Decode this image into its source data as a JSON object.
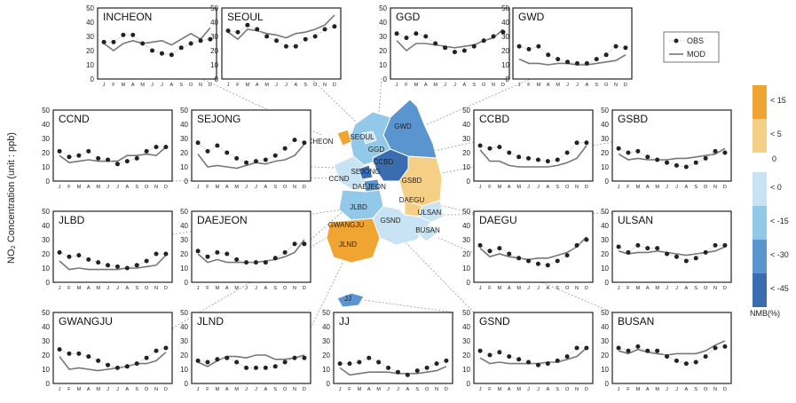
{
  "figure": {
    "ylabel": "NO₂ Concentration (unit : ppb)",
    "months": [
      "J",
      "F",
      "M",
      "A",
      "M",
      "J",
      "J",
      "A",
      "S",
      "O",
      "N",
      "D"
    ],
    "yticks": [
      0,
      10,
      20,
      30,
      40,
      50
    ],
    "legend": {
      "obs": "OBS",
      "mod": "MOD"
    },
    "colorbar": {
      "title": "NMB(%)",
      "zero_label": "0",
      "bins": [
        {
          "label": "< 15",
          "color": "#f0a431"
        },
        {
          "label": "< 5",
          "color": "#f6cf86"
        },
        {
          "label": "< 0",
          "color": "#c7e3f4"
        },
        {
          "label": "< -15",
          "color": "#92c8e8"
        },
        {
          "label": "< -30",
          "color": "#5b95cf"
        },
        {
          "label": "< -45",
          "color": "#3a6db0"
        }
      ]
    },
    "colors": {
      "obs": "#222222",
      "mod": "#777777"
    }
  },
  "chart_data": [
    {
      "type": "line",
      "title": "INCHEON",
      "ylim": [
        0,
        50
      ],
      "series": [
        {
          "name": "OBS",
          "values": [
            26,
            26,
            31,
            31,
            25,
            20,
            18,
            17,
            22,
            25,
            27,
            28
          ]
        },
        {
          "name": "MOD",
          "values": [
            25,
            20,
            25,
            27,
            25,
            26,
            27,
            24,
            28,
            32,
            28,
            36
          ]
        }
      ]
    },
    {
      "type": "line",
      "title": "SEOUL",
      "ylim": [
        0,
        50
      ],
      "series": [
        {
          "name": "OBS",
          "values": [
            34,
            33,
            38,
            35,
            30,
            27,
            23,
            23,
            28,
            30,
            35,
            37
          ]
        },
        {
          "name": "MOD",
          "values": [
            33,
            28,
            35,
            34,
            32,
            31,
            29,
            32,
            33,
            35,
            38,
            45
          ]
        }
      ]
    },
    {
      "type": "line",
      "title": "GGD",
      "ylim": [
        0,
        50
      ],
      "series": [
        {
          "name": "OBS",
          "values": [
            32,
            29,
            32,
            30,
            25,
            22,
            19,
            20,
            23,
            27,
            30,
            33
          ]
        },
        {
          "name": "MOD",
          "values": [
            27,
            20,
            25,
            25,
            24,
            23,
            22,
            23,
            24,
            27,
            29,
            35
          ]
        }
      ]
    },
    {
      "type": "line",
      "title": "GWD",
      "ylim": [
        0,
        50
      ],
      "series": [
        {
          "name": "OBS",
          "values": [
            23,
            21,
            23,
            17,
            14,
            12,
            11,
            11,
            14,
            17,
            23,
            22
          ]
        },
        {
          "name": "MOD",
          "values": [
            14,
            11,
            11,
            10,
            11,
            11,
            10,
            10,
            11,
            12,
            13,
            17
          ]
        }
      ]
    },
    {
      "type": "line",
      "title": "CCND",
      "ylim": [
        0,
        50
      ],
      "series": [
        {
          "name": "OBS",
          "values": [
            21,
            17,
            18,
            21,
            16,
            15,
            12,
            14,
            16,
            21,
            24,
            24
          ]
        },
        {
          "name": "MOD",
          "values": [
            18,
            13,
            14,
            15,
            14,
            14,
            14,
            18,
            18,
            19,
            18,
            24
          ]
        }
      ]
    },
    {
      "type": "line",
      "title": "SEJONG",
      "ylim": [
        0,
        50
      ],
      "series": [
        {
          "name": "OBS",
          "values": [
            27,
            21,
            25,
            20,
            16,
            13,
            14,
            15,
            18,
            23,
            29,
            27
          ]
        },
        {
          "name": "MOD",
          "values": [
            19,
            10,
            11,
            10,
            9,
            11,
            13,
            12,
            14,
            15,
            18,
            26
          ]
        }
      ]
    },
    {
      "type": "line",
      "title": "CCBD",
      "ylim": [
        0,
        50
      ],
      "series": [
        {
          "name": "OBS",
          "values": [
            25,
            23,
            24,
            20,
            17,
            16,
            15,
            14,
            15,
            20,
            27,
            27
          ]
        },
        {
          "name": "MOD",
          "values": [
            22,
            14,
            14,
            11,
            10,
            10,
            10,
            10,
            11,
            13,
            16,
            25
          ]
        }
      ]
    },
    {
      "type": "line",
      "title": "GSBD",
      "ylim": [
        0,
        50
      ],
      "series": [
        {
          "name": "OBS",
          "values": [
            23,
            20,
            21,
            17,
            15,
            13,
            11,
            10,
            13,
            16,
            21,
            20
          ]
        },
        {
          "name": "MOD",
          "values": [
            19,
            15,
            16,
            15,
            15,
            15,
            16,
            16,
            17,
            18,
            19,
            23
          ]
        }
      ]
    },
    {
      "type": "line",
      "title": "JLBD",
      "ylim": [
        0,
        50
      ],
      "series": [
        {
          "name": "OBS",
          "values": [
            21,
            18,
            19,
            16,
            14,
            12,
            11,
            10,
            12,
            15,
            20,
            20
          ]
        },
        {
          "name": "MOD",
          "values": [
            15,
            9,
            10,
            9,
            9,
            9,
            9,
            10,
            10,
            11,
            12,
            19
          ]
        }
      ]
    },
    {
      "type": "line",
      "title": "DAEJEON",
      "ylim": [
        0,
        50
      ],
      "series": [
        {
          "name": "OBS",
          "values": [
            22,
            18,
            21,
            20,
            16,
            14,
            14,
            14,
            17,
            21,
            27,
            27
          ]
        },
        {
          "name": "MOD",
          "values": [
            20,
            14,
            16,
            14,
            14,
            14,
            14,
            15,
            16,
            18,
            21,
            30
          ]
        }
      ]
    },
    {
      "type": "line",
      "title": "DAEGU",
      "ylim": [
        0,
        50
      ],
      "series": [
        {
          "name": "OBS",
          "values": [
            26,
            22,
            24,
            20,
            17,
            15,
            13,
            12,
            15,
            19,
            26,
            30
          ]
        },
        {
          "name": "MOD",
          "values": [
            24,
            18,
            20,
            18,
            17,
            16,
            17,
            17,
            19,
            21,
            25,
            32
          ]
        }
      ]
    },
    {
      "type": "line",
      "title": "ULSAN",
      "ylim": [
        0,
        50
      ],
      "series": [
        {
          "name": "OBS",
          "values": [
            25,
            21,
            26,
            24,
            24,
            20,
            18,
            15,
            17,
            21,
            26,
            26
          ]
        },
        {
          "name": "MOD",
          "values": [
            22,
            20,
            21,
            21,
            22,
            21,
            20,
            19,
            20,
            21,
            22,
            25
          ]
        }
      ]
    },
    {
      "type": "line",
      "title": "GWANGJU",
      "ylim": [
        0,
        50
      ],
      "series": [
        {
          "name": "OBS",
          "values": [
            24,
            21,
            21,
            19,
            16,
            13,
            11,
            12,
            14,
            18,
            23,
            25
          ]
        },
        {
          "name": "MOD",
          "values": [
            19,
            10,
            11,
            10,
            9,
            10,
            11,
            12,
            14,
            14,
            16,
            22
          ]
        }
      ]
    },
    {
      "type": "line",
      "title": "JLND",
      "ylim": [
        0,
        50
      ],
      "series": [
        {
          "name": "OBS",
          "values": [
            16,
            15,
            17,
            18,
            15,
            11,
            11,
            11,
            12,
            15,
            18,
            18
          ]
        },
        {
          "name": "MOD",
          "values": [
            15,
            12,
            16,
            19,
            19,
            18,
            20,
            20,
            17,
            17,
            18,
            20
          ]
        }
      ]
    },
    {
      "type": "line",
      "title": "JJ",
      "ylim": [
        0,
        50
      ],
      "series": [
        {
          "name": "OBS",
          "values": [
            14,
            14,
            15,
            18,
            15,
            11,
            8,
            6,
            9,
            11,
            14,
            16
          ]
        },
        {
          "name": "MOD",
          "values": [
            11,
            6,
            7,
            8,
            8,
            8,
            7,
            7,
            7,
            8,
            9,
            12
          ]
        }
      ]
    },
    {
      "type": "line",
      "title": "GSND",
      "ylim": [
        0,
        50
      ],
      "series": [
        {
          "name": "OBS",
          "values": [
            23,
            20,
            22,
            19,
            17,
            15,
            13,
            14,
            16,
            19,
            25,
            25
          ]
        },
        {
          "name": "MOD",
          "values": [
            18,
            14,
            15,
            14,
            14,
            14,
            14,
            15,
            15,
            17,
            19,
            25
          ]
        }
      ]
    },
    {
      "type": "line",
      "title": "BUSAN",
      "ylim": [
        0,
        50
      ],
      "series": [
        {
          "name": "OBS",
          "values": [
            25,
            23,
            26,
            23,
            23,
            19,
            16,
            14,
            15,
            19,
            25,
            26
          ]
        },
        {
          "name": "MOD",
          "values": [
            23,
            21,
            24,
            22,
            21,
            20,
            21,
            21,
            21,
            23,
            27,
            30
          ]
        }
      ]
    }
  ],
  "map": {
    "labels": [
      "INCHEON",
      "SEOUL",
      "GWD",
      "GGD",
      "CCBD",
      "SEJONG",
      "CCND",
      "DAEJEON",
      "GSBD",
      "DAEGU",
      "JLBD",
      "ULSAN",
      "GSND",
      "GWANGJU",
      "BUSAN",
      "JLND",
      "JJ"
    ]
  }
}
